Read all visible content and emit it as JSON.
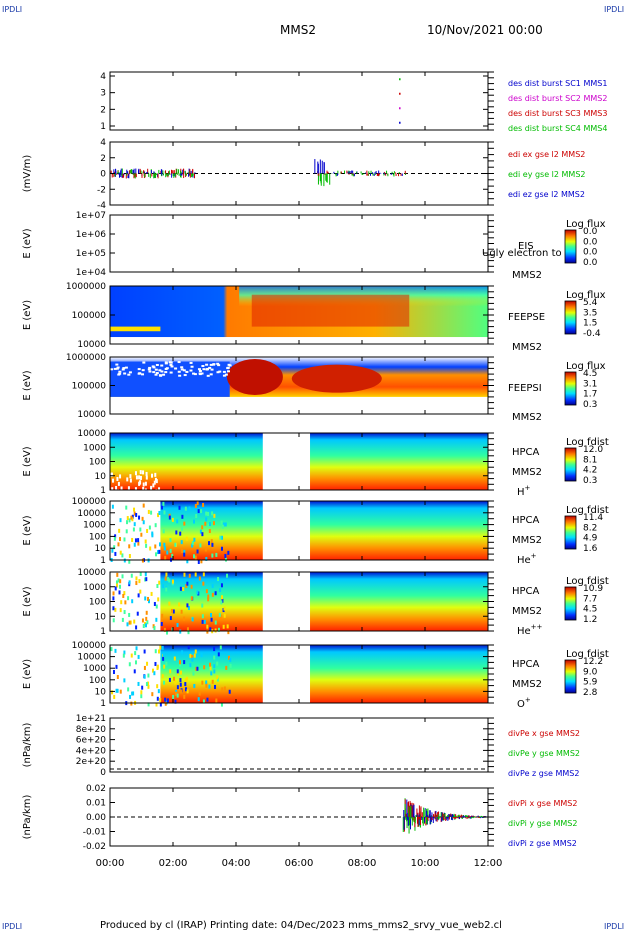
{
  "corner_label": "IPDLI",
  "header": {
    "spacecraft": "MMS2",
    "datetime": "10/Nov/2021 00:00"
  },
  "footer": {
    "text": "Produced by cl (IRAP)    Printing date: 04/Dec/2023    mms_mms2_srvy_vue_web2.cl"
  },
  "time_axis": {
    "ticks": [
      "00:00",
      "02:00",
      "04:00",
      "06:00",
      "08:00",
      "10:00",
      "12:00"
    ],
    "range_hours": [
      0,
      12
    ]
  },
  "chart_data": [
    {
      "type": "line",
      "ylabel": "",
      "y_ticks": [
        "4",
        "3",
        "2",
        "1"
      ],
      "ylim": [
        0.5,
        4.5
      ],
      "series": [
        {
          "name": "des dist burst SC1 MMS1",
          "color": "#0000cc"
        },
        {
          "name": "des dist burst SC2 MMS2",
          "color": "#cc00cc"
        },
        {
          "name": "des dist burst SC3 MMS3",
          "color": "#cc0000"
        },
        {
          "name": "des dist burst SC4 MMS4",
          "color": "#00bb00"
        }
      ],
      "points": [
        {
          "x_hour": 9.2,
          "y": 4,
          "color": "#00bb00"
        },
        {
          "x_hour": 9.2,
          "y": 3,
          "color": "#cc0000"
        },
        {
          "x_hour": 9.2,
          "y": 2,
          "color": "#cc00cc"
        },
        {
          "x_hour": 9.2,
          "y": 1,
          "color": "#0000cc"
        }
      ]
    },
    {
      "type": "line",
      "ylabel": "(mV/m)",
      "y_ticks": [
        "4",
        "2",
        "0",
        "-2",
        "-4"
      ],
      "ylim": [
        -5,
        5
      ],
      "series": [
        {
          "name": "edi ex gse l2 MMS2",
          "color": "#cc0000"
        },
        {
          "name": "edi ey gse l2 MMS2",
          "color": "#00bb00"
        },
        {
          "name": "edi ez gse l2 MMS2",
          "color": "#0000cc"
        }
      ]
    },
    {
      "type": "heatmap",
      "ylabel": "E (eV)",
      "y_ticks": [
        "1e+07",
        "1e+06",
        "1e+05",
        "1e+04"
      ],
      "instrument": "EIS",
      "sc": "MMS2",
      "overlay": "Ugly electron to",
      "cbar_title": "Log flux",
      "cbar_ticks": [
        "0.0",
        "0.0",
        "0.0",
        "0.0"
      ]
    },
    {
      "type": "heatmap",
      "ylabel": "E (eV)",
      "y_ticks": [
        "1000000",
        "100000",
        "10000"
      ],
      "instrument": "FEEPSE",
      "sc": "MMS2",
      "cbar_title": "Log flux",
      "cbar_ticks": [
        "5.4",
        "3.5",
        "1.5",
        "-0.4"
      ]
    },
    {
      "type": "heatmap",
      "ylabel": "E (eV)",
      "y_ticks": [
        "1000000",
        "100000",
        "10000"
      ],
      "instrument": "FEEPSI",
      "sc": "MMS2",
      "cbar_title": "Log flux",
      "cbar_ticks": [
        "4.5",
        "3.1",
        "1.7",
        "0.3"
      ]
    },
    {
      "type": "heatmap",
      "ylabel": "E (eV)",
      "y_ticks": [
        "10000",
        "1000",
        "100",
        "10",
        "1"
      ],
      "instrument": "HPCA",
      "sc": "MMS2",
      "species": "H",
      "charge": "+",
      "cbar_title": "Log fdist",
      "cbar_ticks": [
        "12.0",
        "8.1",
        "4.2",
        "0.3"
      ]
    },
    {
      "type": "heatmap",
      "ylabel": "E (eV)",
      "y_ticks": [
        "100000",
        "10000",
        "1000",
        "100",
        "10",
        "1"
      ],
      "instrument": "HPCA",
      "sc": "MMS2",
      "species": "He",
      "charge": "+",
      "cbar_title": "Log fdist",
      "cbar_ticks": [
        "11.4",
        "8.2",
        "4.9",
        "1.6"
      ]
    },
    {
      "type": "heatmap",
      "ylabel": "E (eV)",
      "y_ticks": [
        "10000",
        "1000",
        "100",
        "10",
        "1"
      ],
      "instrument": "HPCA",
      "sc": "MMS2",
      "species": "He",
      "charge": "++",
      "cbar_title": "Log fdist",
      "cbar_ticks": [
        "10.9",
        "7.7",
        "4.5",
        "1.2"
      ]
    },
    {
      "type": "heatmap",
      "ylabel": "E (eV)",
      "y_ticks": [
        "100000",
        "10000",
        "1000",
        "100",
        "10",
        "1"
      ],
      "instrument": "HPCA",
      "sc": "MMS2",
      "species": "O",
      "charge": "+",
      "cbar_title": "Log fdist",
      "cbar_ticks": [
        "12.2",
        "9.0",
        "5.9",
        "2.8"
      ]
    },
    {
      "type": "line",
      "ylabel": "(nPa/km)",
      "y_ticks": [
        "1e+21",
        "8e+20",
        "6e+20",
        "4e+20",
        "2e+20",
        "0"
      ],
      "series": [
        {
          "name": "divPe x gse MMS2",
          "color": "#cc0000"
        },
        {
          "name": "divPe y gse MMS2",
          "color": "#00bb00"
        },
        {
          "name": "divPe z gse MMS2",
          "color": "#0000cc"
        }
      ]
    },
    {
      "type": "line",
      "ylabel": "(nPa/km)",
      "y_ticks": [
        "0.02",
        "0.01",
        "0.00",
        "-0.01",
        "-0.02"
      ],
      "ylim": [
        -0.025,
        0.025
      ],
      "series": [
        {
          "name": "divPi x gse MMS2",
          "color": "#cc0000"
        },
        {
          "name": "divPi y gse MMS2",
          "color": "#00bb00"
        },
        {
          "name": "divPi z gse MMS2",
          "color": "#0000cc"
        }
      ]
    }
  ]
}
